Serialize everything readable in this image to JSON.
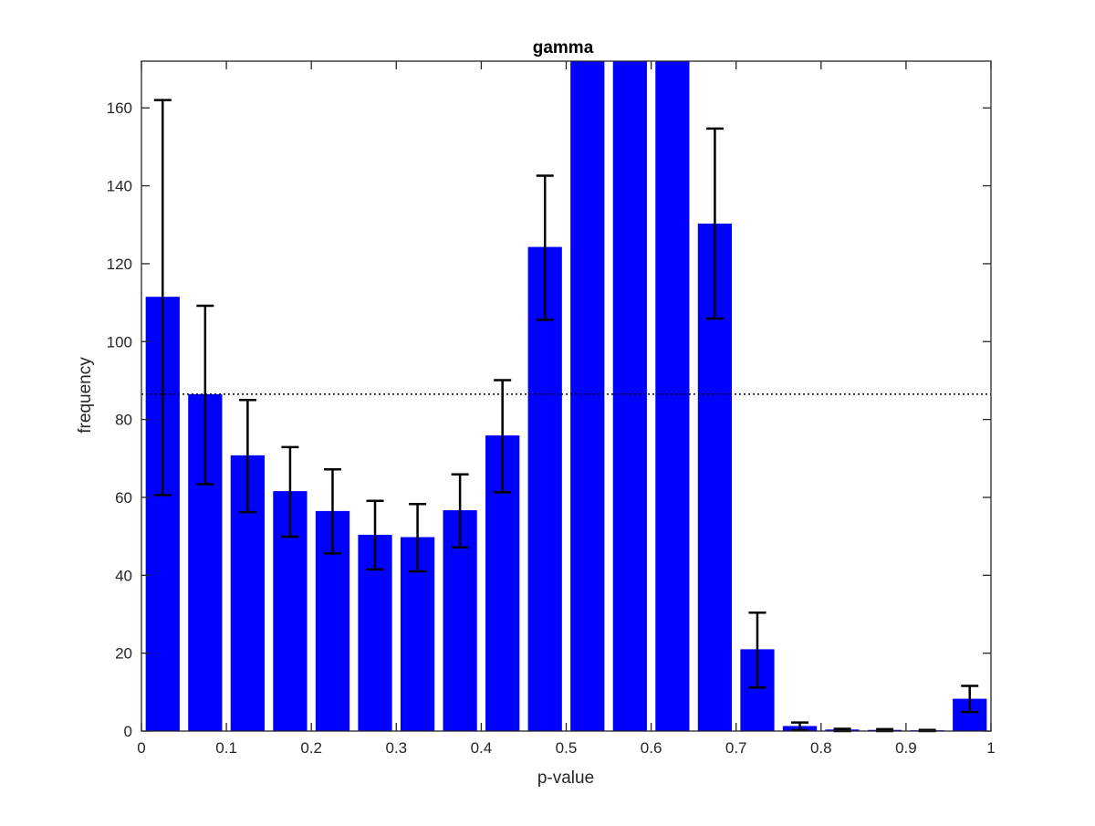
{
  "chart_data": {
    "type": "bar",
    "title": "gamma",
    "xlabel": "p-value",
    "ylabel": "frequency",
    "xlim": [
      0,
      1
    ],
    "ylim": [
      0,
      172
    ],
    "x_ticks": [
      0,
      0.1,
      0.2,
      0.3,
      0.4,
      0.5,
      0.6,
      0.7,
      0.8,
      0.9,
      1
    ],
    "x_tick_labels": [
      "0",
      "0.1",
      "0.2",
      "0.3",
      "0.4",
      "0.5",
      "0.6",
      "0.7",
      "0.8",
      "0.9",
      "1"
    ],
    "y_ticks": [
      0,
      20,
      40,
      60,
      80,
      100,
      120,
      140,
      160
    ],
    "y_tick_labels": [
      "0",
      "20",
      "40",
      "60",
      "80",
      "100",
      "120",
      "140",
      "160"
    ],
    "bin_width": 0.05,
    "x": [
      0.025,
      0.075,
      0.125,
      0.175,
      0.225,
      0.275,
      0.325,
      0.375,
      0.425,
      0.475,
      0.525,
      0.575,
      0.625,
      0.675,
      0.725,
      0.775,
      0.825,
      0.875,
      0.925,
      0.975
    ],
    "values": [
      111.5,
      86.5,
      70.8,
      61.6,
      56.5,
      50.4,
      49.8,
      56.7,
      75.9,
      124.3,
      172,
      172,
      172,
      130.3,
      21.0,
      1.3,
      0.4,
      0.3,
      0.2,
      8.3
    ],
    "error_low": [
      60.6,
      63.4,
      56.2,
      49.9,
      45.6,
      41.5,
      41.0,
      47.2,
      61.3,
      105.6,
      null,
      null,
      null,
      105.9,
      11.2,
      0.2,
      0.0,
      0.0,
      0.0,
      4.9
    ],
    "error_high": [
      162.0,
      109.2,
      85.0,
      72.9,
      67.2,
      59.1,
      58.3,
      65.9,
      90.1,
      142.6,
      null,
      null,
      null,
      154.7,
      30.4,
      2.2,
      0.6,
      0.5,
      0.3,
      11.6
    ],
    "reference_line": 86.5,
    "bar_color": "#0000ff",
    "error_color": "#000000",
    "grid": false
  }
}
